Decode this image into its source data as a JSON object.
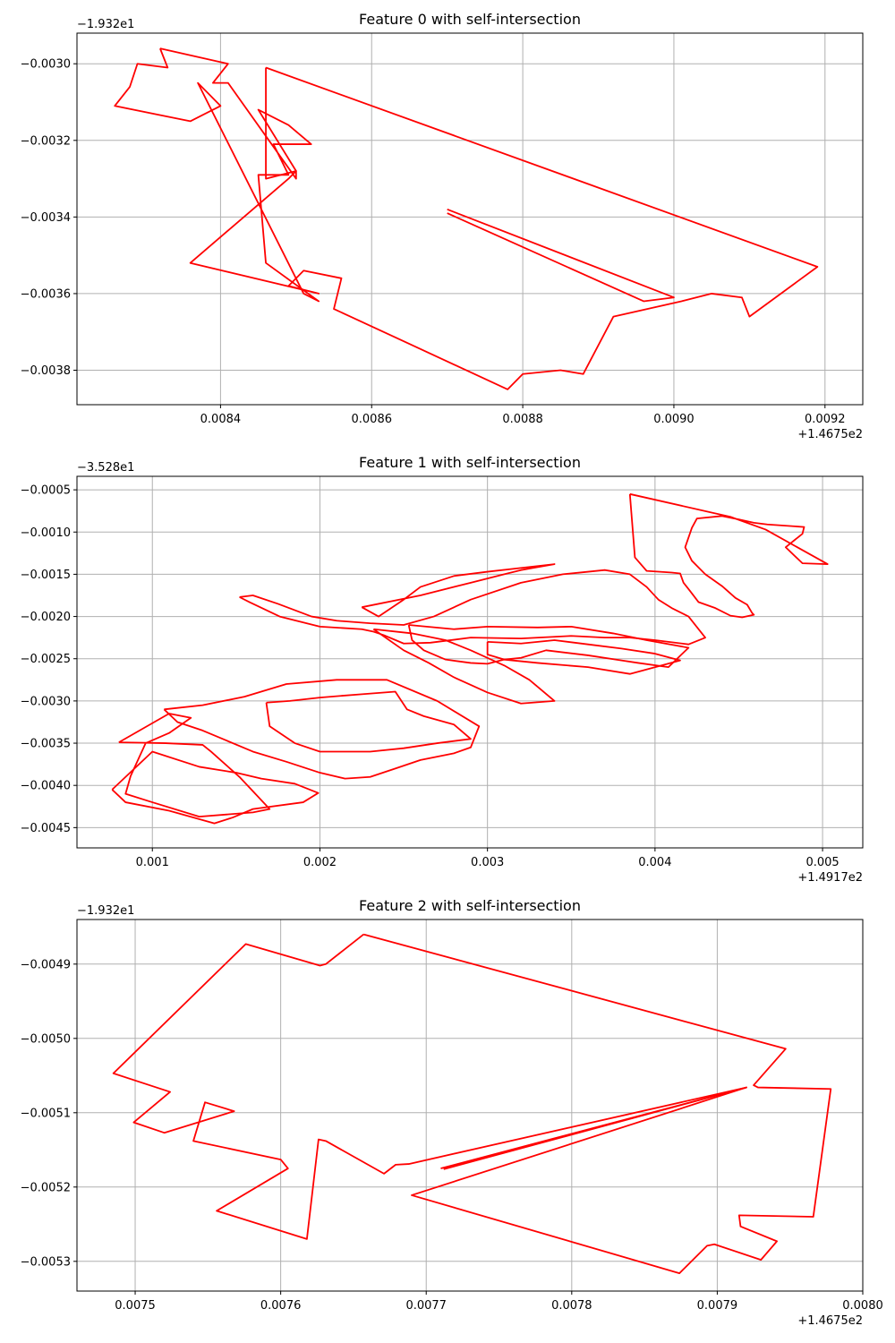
{
  "colors": {
    "series": "#ff0000",
    "grid": "#b0b0b0",
    "axes": "#000000"
  },
  "chart_data": [
    {
      "type": "line",
      "title": "Feature 0 with self-intersection",
      "xlabel": "",
      "ylabel": "",
      "x_offset_label": "+1.4675e2",
      "y_offset_label": "−1.932e1",
      "xlim": [
        0.00821,
        0.00925
      ],
      "ylim": [
        -0.00389,
        -0.00292
      ],
      "x_ticks": [
        0.0084,
        0.0086,
        0.0088,
        0.009,
        0.0092
      ],
      "x_tick_labels": [
        "0.0084",
        "0.0086",
        "0.0088",
        "0.0090",
        "0.0092"
      ],
      "y_ticks": [
        -0.003,
        -0.0032,
        -0.0034,
        -0.0036,
        -0.0038
      ],
      "y_tick_labels": [
        "−0.0030",
        "−0.0032",
        "−0.0034",
        "−0.0036",
        "−0.0038"
      ],
      "grid": true,
      "series": [
        {
          "x": [
            0.00832,
            0.00841,
            0.00839,
            0.00841,
            0.0085,
            0.0085,
            0.00845,
            0.00849,
            0.00852,
            0.00847,
            0.00849,
            0.00845,
            0.00846,
            0.00853,
            0.00851,
            0.00837,
            0.0084,
            0.00836,
            0.00826,
            0.00828,
            0.00829,
            0.00833,
            0.00832
          ],
          "y": [
            -0.00296,
            -0.003,
            -0.00305,
            -0.00305,
            -0.0033,
            -0.00328,
            -0.00312,
            -0.00316,
            -0.00321,
            -0.00321,
            -0.00329,
            -0.00329,
            -0.00352,
            -0.00362,
            -0.0036,
            -0.00305,
            -0.00311,
            -0.00315,
            -0.00311,
            -0.00306,
            -0.003,
            -0.00301,
            -0.00296
          ]
        },
        {
          "x": [
            0.00846,
            0.00919,
            0.0091,
            0.00909,
            0.00905,
            0.00901,
            0.00892,
            0.00888,
            0.00885,
            0.0088,
            0.00878,
            0.00855,
            0.00856,
            0.00851,
            0.00849,
            0.00853,
            0.00836,
            0.00849,
            0.0085,
            0.00846,
            0.00846
          ],
          "y": [
            -0.00301,
            -0.00353,
            -0.00366,
            -0.00361,
            -0.0036,
            -0.00362,
            -0.00366,
            -0.00381,
            -0.0038,
            -0.00381,
            -0.00385,
            -0.00364,
            -0.00356,
            -0.00354,
            -0.00358,
            -0.0036,
            -0.00352,
            -0.0033,
            -0.00328,
            -0.0033,
            -0.00301
          ]
        },
        {
          "x": [
            0.0087,
            0.009,
            0.00896,
            0.0087
          ],
          "y": [
            -0.00338,
            -0.00361,
            -0.00362,
            -0.00339
          ]
        }
      ]
    },
    {
      "type": "line",
      "title": "Feature 1 with self-intersection",
      "xlabel": "",
      "ylabel": "",
      "x_offset_label": "+1.4917e2",
      "y_offset_label": "−3.528e1",
      "xlim": [
        0.00055,
        0.00524
      ],
      "ylim": [
        -0.00474,
        -0.00034
      ],
      "x_ticks": [
        0.001,
        0.002,
        0.003,
        0.004,
        0.005
      ],
      "x_tick_labels": [
        "0.001",
        "0.002",
        "0.003",
        "0.004",
        "0.005"
      ],
      "y_ticks": [
        -0.0005,
        -0.001,
        -0.0015,
        -0.002,
        -0.0025,
        -0.003,
        -0.0035,
        -0.004,
        -0.0045
      ],
      "y_tick_labels": [
        "−0.0005",
        "−0.0010",
        "−0.0015",
        "−0.0020",
        "−0.0025",
        "−0.0030",
        "−0.0035",
        "−0.0040",
        "−0.0045"
      ],
      "grid": true,
      "series": [
        {
          "x": [
            0.00385,
            0.00445,
            0.00466,
            0.00503,
            0.00488,
            0.00478,
            0.00488,
            0.00489,
            0.00467,
            0.00459,
            0.0045,
            0.0044,
            0.00425,
            0.00422,
            0.00418,
            0.00422,
            0.0043,
            0.0044,
            0.00448,
            0.00455,
            0.00458,
            0.00459,
            0.00452,
            0.00445,
            0.00436,
            0.00426,
            0.00421,
            0.00417,
            0.00415,
            0.0041,
            0.00395,
            0.00388,
            0.00385
          ],
          "y": [
            -0.00055,
            -0.00082,
            -0.00097,
            -0.00138,
            -0.00137,
            -0.00118,
            -0.00102,
            -0.00094,
            -0.00091,
            -0.00089,
            -0.00085,
            -0.00081,
            -0.00084,
            -0.00095,
            -0.00118,
            -0.00134,
            -0.0015,
            -0.00164,
            -0.00178,
            -0.00186,
            -0.00196,
            -0.00198,
            -0.00201,
            -0.00199,
            -0.0019,
            -0.00183,
            -0.0017,
            -0.0016,
            -0.00149,
            -0.00148,
            -0.00146,
            -0.0013,
            -0.00055
          ]
        },
        {
          "x": [
            0.00152,
            0.0016,
            0.00175,
            0.00195,
            0.0021,
            0.0023,
            0.0025,
            0.00268,
            0.0029,
            0.0032,
            0.00345,
            0.0037,
            0.00385,
            0.00395,
            0.00402,
            0.0041,
            0.0042,
            0.0043,
            0.0042,
            0.004,
            0.00385,
            0.0037,
            0.0035,
            0.0032,
            0.0029,
            0.00266,
            0.0025,
            0.00238,
            0.00232,
            0.00225,
            0.002,
            0.00176,
            0.00158,
            0.00152
          ],
          "y": [
            -0.00177,
            -0.00175,
            -0.00185,
            -0.002,
            -0.00205,
            -0.00208,
            -0.0021,
            -0.002,
            -0.0018,
            -0.0016,
            -0.0015,
            -0.00145,
            -0.0015,
            -0.00165,
            -0.0018,
            -0.0019,
            -0.002,
            -0.00225,
            -0.00233,
            -0.00228,
            -0.00225,
            -0.00225,
            -0.00223,
            -0.00226,
            -0.00225,
            -0.00231,
            -0.00232,
            -0.00222,
            -0.00218,
            -0.00215,
            -0.00212,
            -0.002,
            -0.00183,
            -0.00177
          ]
        },
        {
          "x": [
            0.00253,
            0.0028,
            0.003,
            0.0033,
            0.0035,
            0.00375,
            0.00395,
            0.0042,
            0.00408,
            0.0039,
            0.0038,
            0.0036,
            0.00335,
            0.0032,
            0.0031,
            0.003,
            0.0029,
            0.00275,
            0.00262,
            0.00255,
            0.00253
          ],
          "y": [
            -0.0021,
            -0.00215,
            -0.00212,
            -0.00213,
            -0.00212,
            -0.0022,
            -0.00228,
            -0.00237,
            -0.0026,
            -0.00255,
            -0.00252,
            -0.00246,
            -0.0024,
            -0.00249,
            -0.00251,
            -0.00256,
            -0.00255,
            -0.00251,
            -0.0024,
            -0.00228,
            -0.0021
          ]
        },
        {
          "x": [
            0.003,
            0.0032,
            0.0034,
            0.0036,
            0.0038,
            0.004,
            0.00415,
            0.00385,
            0.0036,
            0.0033,
            0.0031,
            0.003,
            0.003
          ],
          "y": [
            -0.0023,
            -0.00232,
            -0.00228,
            -0.00233,
            -0.00238,
            -0.00244,
            -0.00252,
            -0.00268,
            -0.0026,
            -0.00255,
            -0.00251,
            -0.00245,
            -0.0023
          ]
        },
        {
          "x": [
            0.0008,
            0.00108,
            0.0013,
            0.00135,
            0.00152,
            0.0017,
            0.0016,
            0.00128,
            0.001,
            0.00084,
            0.00087,
            0.00096,
            0.0011,
            0.00123,
            0.0011,
            0.0008
          ],
          "y": [
            -0.00349,
            -0.0035,
            -0.00352,
            -0.0036,
            -0.0039,
            -0.00428,
            -0.00432,
            -0.00437,
            -0.0042,
            -0.0041,
            -0.00389,
            -0.0035,
            -0.00338,
            -0.0032,
            -0.00315,
            -0.00349
          ]
        },
        {
          "x": [
            0.00076,
            0.00084,
            0.0011,
            0.00137,
            0.00148,
            0.0016,
            0.0019,
            0.00199,
            0.00185,
            0.00165,
            0.0015,
            0.00128,
            0.001,
            0.00076
          ],
          "y": [
            -0.00405,
            -0.0042,
            -0.0043,
            -0.00445,
            -0.00438,
            -0.00428,
            -0.0042,
            -0.00409,
            -0.00398,
            -0.00392,
            -0.00385,
            -0.00378,
            -0.0036,
            -0.00405
          ]
        },
        {
          "x": [
            0.00107,
            0.0013,
            0.00155,
            0.0018,
            0.0021,
            0.0024,
            0.0027,
            0.00295,
            0.0029,
            0.0028,
            0.0026,
            0.00245,
            0.0023,
            0.00215,
            0.002,
            0.0018,
            0.0016,
            0.00142,
            0.0013,
            0.00115,
            0.00107
          ],
          "y": [
            -0.0031,
            -0.00305,
            -0.00295,
            -0.0028,
            -0.00275,
            -0.00275,
            -0.003,
            -0.0033,
            -0.00355,
            -0.00362,
            -0.0037,
            -0.0038,
            -0.0039,
            -0.00392,
            -0.00385,
            -0.00372,
            -0.0036,
            -0.00345,
            -0.00335,
            -0.00325,
            -0.0031
          ]
        },
        {
          "x": [
            0.00168,
            0.00182,
            0.002,
            0.00225,
            0.00245,
            0.00252,
            0.00262,
            0.0028,
            0.0029,
            0.0027,
            0.0025,
            0.0023,
            0.002,
            0.00185,
            0.0017,
            0.00168
          ],
          "y": [
            -0.00302,
            -0.003,
            -0.00296,
            -0.00292,
            -0.00289,
            -0.0031,
            -0.00318,
            -0.00328,
            -0.00345,
            -0.0035,
            -0.00356,
            -0.0036,
            -0.0036,
            -0.0035,
            -0.0033,
            -0.00302
          ]
        },
        {
          "x": [
            0.00225,
            0.0026,
            0.0029,
            0.0031,
            0.0032,
            0.0034,
            0.003,
            0.0028,
            0.0026,
            0.0025,
            0.00235,
            0.00225
          ],
          "y": [
            -0.00189,
            -0.00175,
            -0.0016,
            -0.0015,
            -0.00145,
            -0.00138,
            -0.00147,
            -0.00152,
            -0.00165,
            -0.0018,
            -0.002,
            -0.00189
          ]
        },
        {
          "x": [
            0.00232,
            0.00255,
            0.00275,
            0.0029,
            0.0031,
            0.00325,
            0.0034,
            0.0032,
            0.003,
            0.0028,
            0.00265,
            0.0025,
            0.00232
          ],
          "y": [
            -0.00215,
            -0.0022,
            -0.00228,
            -0.0024,
            -0.00258,
            -0.00275,
            -0.003,
            -0.00303,
            -0.0029,
            -0.00272,
            -0.00255,
            -0.0024,
            -0.00215
          ]
        }
      ]
    },
    {
      "type": "line",
      "title": "Feature 2 with self-intersection",
      "xlabel": "",
      "ylabel": "",
      "x_offset_label": "+1.4675e2",
      "y_offset_label": "−1.932e1",
      "xlim": [
        0.00746,
        0.008
      ],
      "ylim": [
        -0.00534,
        -0.00484
      ],
      "x_ticks": [
        0.0075,
        0.0076,
        0.0077,
        0.0078,
        0.0079,
        0.008
      ],
      "x_tick_labels": [
        "0.0075",
        "0.0076",
        "0.0077",
        "0.0078",
        "0.0079",
        "0.0080"
      ],
      "y_ticks": [
        -0.0049,
        -0.005,
        -0.0051,
        -0.0052,
        -0.0053
      ],
      "y_tick_labels": [
        "−0.0049",
        "−0.0050",
        "−0.0051",
        "−0.0052",
        "−0.0053"
      ],
      "grid": true,
      "series": [
        {
          "x": [
            0.007657,
            0.007947,
            0.007925,
            0.007928,
            0.007978,
            0.007966,
            0.007915,
            0.007916,
            0.007941,
            0.00793,
            0.007898,
            0.007893,
            0.007874,
            0.00769,
            0.00792,
            0.007688,
            0.007679,
            0.007671,
            0.007631,
            0.007626,
            0.007618,
            0.007556,
            0.007605,
            0.0076,
            0.00754,
            0.007548,
            0.007568,
            0.00752,
            0.007499,
            0.007524,
            0.007485,
            0.007576,
            0.007627,
            0.007631,
            0.007657
          ],
          "y": [
            -0.00486,
            -0.005014,
            -0.005063,
            -0.005066,
            -0.005068,
            -0.00524,
            -0.005238,
            -0.005253,
            -0.005273,
            -0.005298,
            -0.005277,
            -0.005279,
            -0.005316,
            -0.005211,
            -0.005066,
            -0.005169,
            -0.00517,
            -0.005182,
            -0.005138,
            -0.005136,
            -0.00527,
            -0.005232,
            -0.005175,
            -0.005163,
            -0.005138,
            -0.005086,
            -0.005098,
            -0.005127,
            -0.005113,
            -0.005072,
            -0.005047,
            -0.004873,
            -0.004902,
            -0.0049,
            -0.00486
          ]
        },
        {
          "x": [
            0.00771,
            0.00792,
            0.007712
          ],
          "y": [
            -0.005175,
            -0.005066,
            -0.005176
          ]
        }
      ]
    }
  ]
}
